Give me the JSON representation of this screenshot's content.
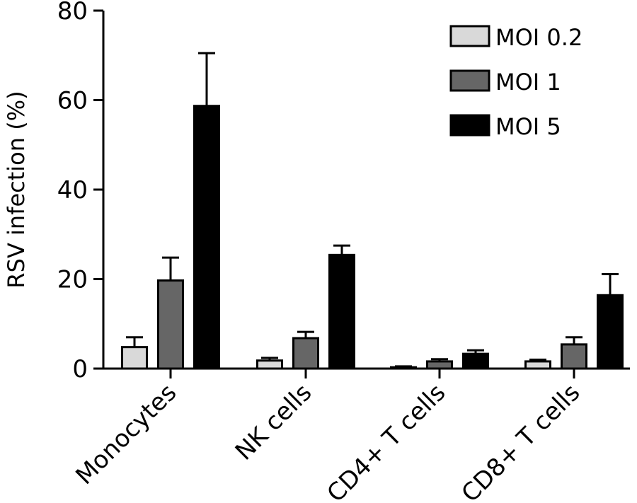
{
  "chart_data": {
    "type": "bar",
    "title": "",
    "xlabel": "",
    "ylabel": "RSV infection (%)",
    "ylim": [
      0,
      80
    ],
    "yticks": [
      0,
      20,
      40,
      60,
      80
    ],
    "categories": [
      "Monocytes",
      "NK cells",
      "CD4+ T cells",
      "CD8+ T cells"
    ],
    "series": [
      {
        "name": "MOI 0.2",
        "color": "#d9d9d9",
        "values": [
          4.8,
          1.8,
          0.3,
          1.6
        ],
        "errors": [
          2.2,
          0.6,
          0.2,
          0.4
        ]
      },
      {
        "name": "MOI 1",
        "color": "#666666",
        "values": [
          19.7,
          6.8,
          1.6,
          5.4
        ],
        "errors": [
          5.1,
          1.4,
          0.5,
          1.6
        ]
      },
      {
        "name": "MOI 5",
        "color": "#000000",
        "values": [
          58.7,
          25.4,
          3.3,
          16.4
        ],
        "errors": [
          11.8,
          2.1,
          0.8,
          4.7
        ]
      }
    ],
    "legend_position": "top-right"
  }
}
